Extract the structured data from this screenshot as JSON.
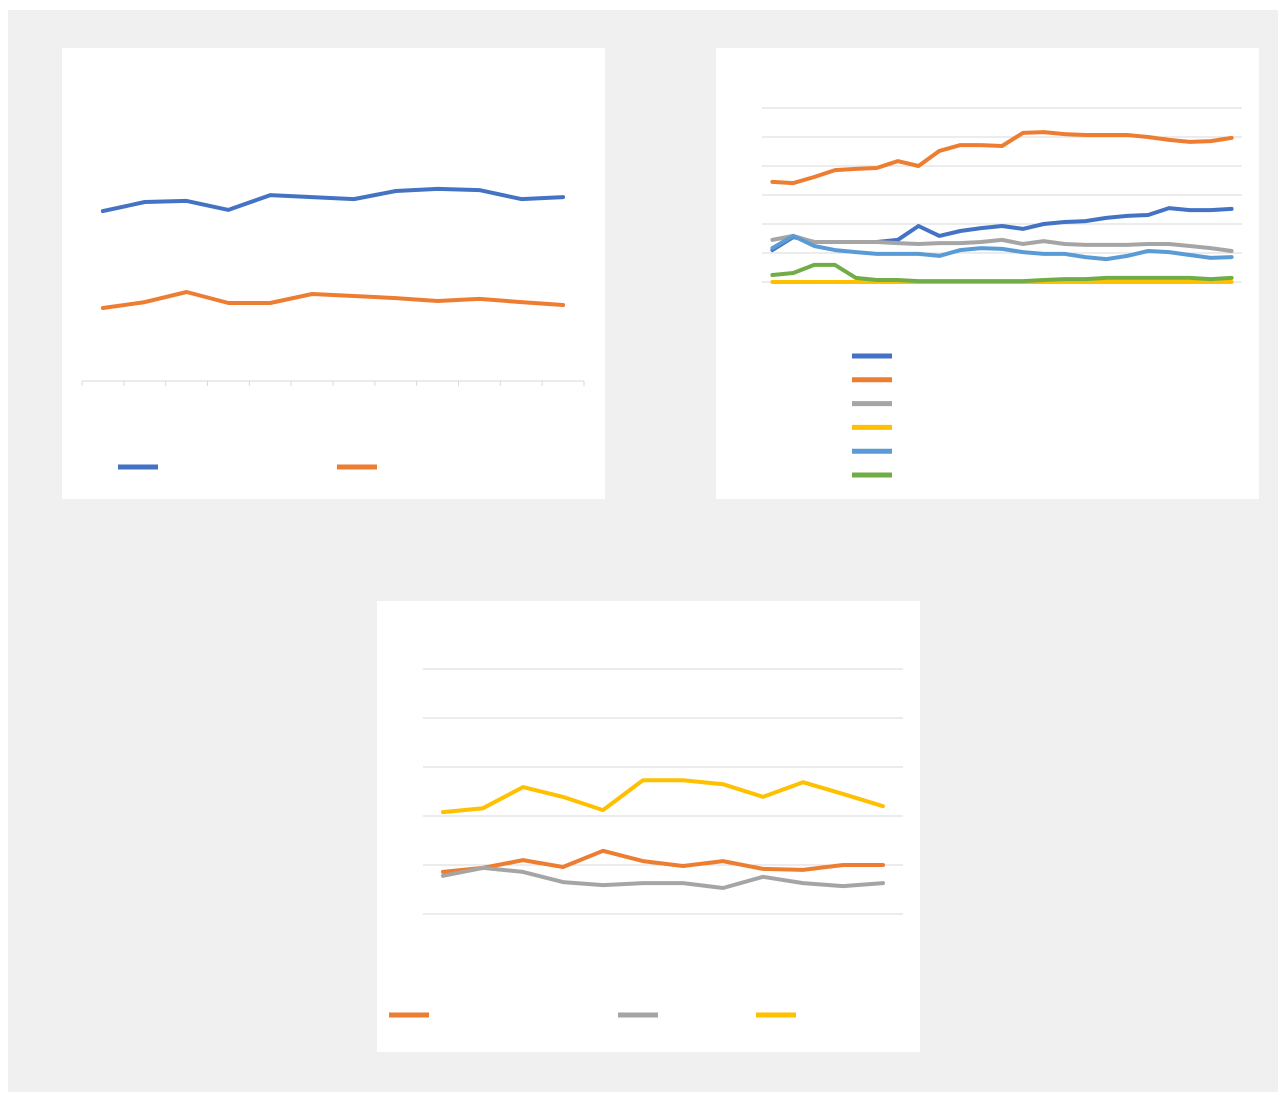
{
  "chart_data": [
    {
      "type": "line",
      "categories": [
        null,
        null,
        null,
        null,
        null,
        null,
        null,
        null,
        null,
        null,
        null,
        null
      ],
      "ylim": [
        0,
        100
      ],
      "grid": false,
      "tick_labels": false,
      "legend": "bottom",
      "series": [
        {
          "color": "#4472c4",
          "values": [
            58.4,
            61.5,
            61.9,
            58.8,
            63.9,
            63.2,
            62.5,
            65.3,
            66.0,
            65.6,
            62.5,
            63.2
          ]
        },
        {
          "color": "#ed7d31",
          "values": [
            25.1,
            27.1,
            30.6,
            26.8,
            26.8,
            29.9,
            29.2,
            28.5,
            27.5,
            28.2,
            27.1,
            26.1
          ]
        }
      ]
    },
    {
      "type": "line",
      "categories": [
        null,
        null,
        null,
        null,
        null,
        null,
        null,
        null,
        null,
        null,
        null,
        null,
        null,
        null,
        null,
        null,
        null,
        null,
        null,
        null,
        null,
        null,
        null
      ],
      "ylim": [
        0,
        6
      ],
      "yticks": [
        0,
        1,
        2,
        3,
        4,
        5,
        6
      ],
      "grid": true,
      "tick_labels": false,
      "legend": "bottom",
      "series": [
        {
          "color": "#4472c4",
          "values": [
            1.1,
            1.55,
            1.38,
            1.38,
            1.38,
            1.38,
            1.45,
            1.93,
            1.59,
            1.76,
            1.86,
            1.93,
            1.83,
            2.0,
            2.07,
            2.1,
            2.21,
            2.28,
            2.31,
            2.55,
            2.48,
            2.48,
            2.52
          ]
        },
        {
          "color": "#ed7d31",
          "values": [
            3.45,
            3.41,
            3.62,
            3.86,
            3.9,
            3.93,
            4.17,
            4.0,
            4.52,
            4.72,
            4.72,
            4.69,
            5.14,
            5.17,
            5.1,
            5.07,
            5.07,
            5.07,
            5.0,
            4.9,
            4.83,
            4.86,
            4.97
          ]
        },
        {
          "color": "#a5a5a5",
          "values": [
            1.45,
            1.59,
            1.38,
            1.38,
            1.38,
            1.38,
            1.34,
            1.31,
            1.34,
            1.34,
            1.38,
            1.45,
            1.31,
            1.41,
            1.31,
            1.28,
            1.28,
            1.28,
            1.31,
            1.31,
            1.24,
            1.17,
            1.07
          ]
        },
        {
          "color": "#ffc000",
          "values": [
            0,
            0,
            0,
            0,
            0,
            0,
            0,
            0,
            0,
            0,
            0,
            0,
            0,
            0,
            0,
            0,
            0,
            0,
            0,
            0,
            0,
            0,
            0
          ]
        },
        {
          "color": "#5b9bd5",
          "values": [
            1.17,
            1.59,
            1.24,
            1.1,
            1.03,
            0.97,
            0.97,
            0.97,
            0.9,
            1.1,
            1.17,
            1.14,
            1.03,
            0.97,
            0.97,
            0.86,
            0.79,
            0.9,
            1.07,
            1.03,
            0.93,
            0.83,
            0.86
          ]
        },
        {
          "color": "#70ad47",
          "values": [
            0.24,
            0.31,
            0.59,
            0.59,
            0.14,
            0.07,
            0.07,
            0.03,
            0.03,
            0.03,
            0.03,
            0.03,
            0.03,
            0.07,
            0.1,
            0.1,
            0.14,
            0.14,
            0.14,
            0.14,
            0.14,
            0.1,
            0.14
          ]
        }
      ]
    },
    {
      "type": "line",
      "categories": [
        null,
        null,
        null,
        null,
        null,
        null,
        null,
        null,
        null,
        null,
        null,
        null
      ],
      "ylim": [
        0,
        5
      ],
      "yticks": [
        0,
        1,
        2,
        3,
        4,
        5
      ],
      "grid": true,
      "tick_labels": false,
      "legend": "bottom",
      "series": [
        {
          "color": "#ed7d31",
          "values": [
            0.86,
            0.94,
            1.1,
            0.96,
            1.29,
            1.08,
            0.98,
            1.08,
            0.92,
            0.9,
            1.0,
            1.0
          ]
        },
        {
          "color": "#a5a5a5",
          "values": [
            0.78,
            0.94,
            0.86,
            0.65,
            0.59,
            0.63,
            0.63,
            0.53,
            0.76,
            0.63,
            0.57,
            0.63
          ]
        },
        {
          "color": "#ffc000",
          "values": [
            2.08,
            2.16,
            2.59,
            2.39,
            2.12,
            2.73,
            2.73,
            2.65,
            2.39,
            2.69,
            2.45,
            2.2
          ]
        }
      ]
    }
  ]
}
